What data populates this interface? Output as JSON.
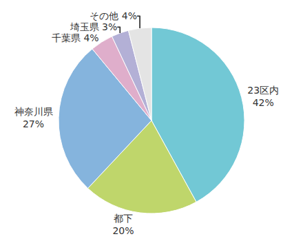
{
  "chart_data": {
    "type": "pie",
    "categories": [
      "23区内",
      "都下",
      "神奈川県",
      "千葉県",
      "埼玉県",
      "その他"
    ],
    "values": [
      42,
      20,
      27,
      4,
      3,
      4
    ],
    "value_labels": [
      "42%",
      "20%",
      "27%",
      "4%",
      "3%",
      "4%"
    ],
    "colors": [
      "#72c8d5",
      "#bfd66b",
      "#85b4dd",
      "#dfaecb",
      "#b3b0d6",
      "#e4e4e4"
    ],
    "data_labels": true
  }
}
